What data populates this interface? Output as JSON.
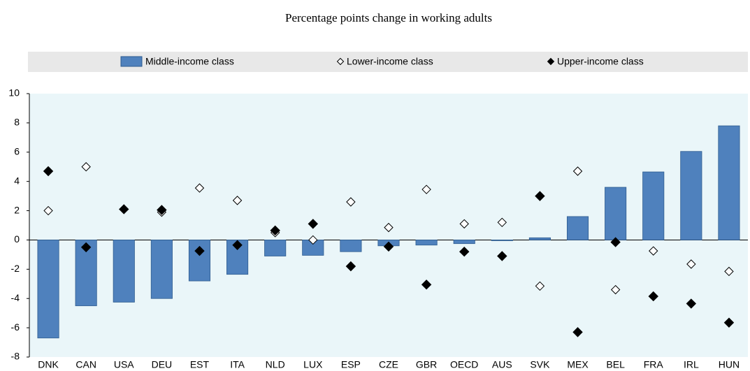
{
  "chart_data": {
    "type": "bar-marker",
    "title": "Percentage points change in working adults",
    "categories": [
      "DNK",
      "CAN",
      "USA",
      "DEU",
      "EST",
      "ITA",
      "NLD",
      "LUX",
      "ESP",
      "CZE",
      "GBR",
      "OECD",
      "AUS",
      "SVK",
      "MEX",
      "BEL",
      "FRA",
      "IRL",
      "HUN"
    ],
    "series": [
      {
        "name": "Middle-income class",
        "kind": "bar",
        "color": "#4f81bd",
        "values": [
          -6.7,
          -4.5,
          -4.25,
          -4.0,
          -2.8,
          -2.35,
          -1.1,
          -1.05,
          -0.8,
          -0.4,
          -0.35,
          -0.25,
          -0.05,
          0.15,
          1.6,
          3.6,
          4.65,
          6.05,
          7.8
        ]
      },
      {
        "name": "Lower-income class",
        "kind": "hollow-diamond",
        "color": "#000000",
        "values": [
          2.0,
          5.0,
          2.1,
          1.9,
          3.55,
          2.7,
          0.5,
          0.0,
          2.6,
          0.85,
          3.45,
          1.1,
          1.2,
          -3.15,
          4.7,
          -3.4,
          -0.75,
          -1.65,
          -2.15
        ]
      },
      {
        "name": "Upper-income class",
        "kind": "diamond",
        "color": "#000000",
        "values": [
          4.7,
          -0.5,
          2.1,
          2.05,
          -0.75,
          -0.35,
          0.65,
          1.1,
          -1.8,
          -0.45,
          -3.05,
          -0.8,
          -1.1,
          3.0,
          -6.3,
          -0.15,
          -3.85,
          -4.35,
          -5.65
        ]
      }
    ],
    "ylim": [
      -8,
      10
    ],
    "yticks": [
      -8,
      -6,
      -4,
      -2,
      0,
      2,
      4,
      6,
      8,
      10
    ],
    "grid": false
  }
}
